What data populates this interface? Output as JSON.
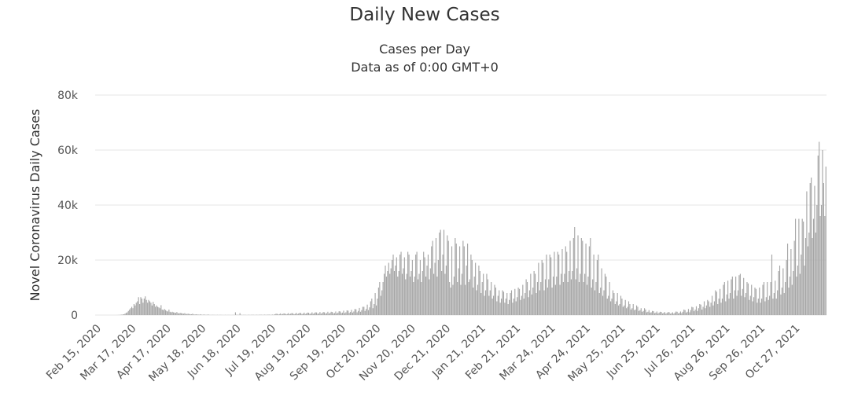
{
  "chart_data": {
    "type": "bar",
    "title": "Daily New Cases",
    "subtitle": [
      "Cases per Day",
      "Data as of 0:00 GMT+0"
    ],
    "y_label": "Novel Coronavirus Daily Cases",
    "color": "#a6a6a6",
    "grid": true,
    "ylim": [
      0,
      80000
    ],
    "yticks": [
      0,
      {
        "value": 20000,
        "label": "20k"
      },
      {
        "value": 40000,
        "label": "40k"
      },
      {
        "value": 60000,
        "label": "60k"
      },
      {
        "value": 80000,
        "label": "80k"
      }
    ],
    "categories": [
      "Feb 15, 2020",
      null,
      null,
      null,
      null,
      null,
      null,
      null,
      null,
      null,
      null,
      null,
      null,
      null,
      null,
      null,
      null,
      null,
      null,
      null,
      null,
      null,
      null,
      null,
      null,
      null,
      null,
      null,
      null,
      null,
      null,
      "Mar 17, 2020",
      null,
      null,
      null,
      null,
      null,
      null,
      null,
      null,
      null,
      null,
      null,
      null,
      null,
      null,
      null,
      null,
      null,
      null,
      null,
      null,
      null,
      null,
      null,
      null,
      null,
      null,
      null,
      null,
      null,
      null,
      "Apr 17, 2020",
      null,
      null,
      null,
      null,
      null,
      null,
      null,
      null,
      null,
      null,
      null,
      null,
      null,
      null,
      null,
      null,
      null,
      null,
      null,
      null,
      null,
      null,
      null,
      null,
      null,
      null,
      null,
      null,
      null,
      null,
      "May 18, 2020",
      null,
      null,
      null,
      null,
      null,
      null,
      null,
      null,
      null,
      null,
      null,
      null,
      null,
      null,
      null,
      null,
      null,
      null,
      null,
      null,
      null,
      null,
      null,
      null,
      null,
      null,
      null,
      null,
      null,
      null,
      "Jun 18, 2020",
      null,
      null,
      null,
      null,
      null,
      null,
      null,
      null,
      null,
      null,
      null,
      null,
      null,
      null,
      null,
      null,
      null,
      null,
      null,
      null,
      null,
      null,
      null,
      null,
      null,
      null,
      null,
      null,
      null,
      null,
      "Jul 19, 2020",
      null,
      null,
      null,
      null,
      null,
      null,
      null,
      null,
      null,
      null,
      null,
      null,
      null,
      null,
      null,
      null,
      null,
      null,
      null,
      null,
      null,
      null,
      null,
      null,
      null,
      null,
      null,
      null,
      null,
      null,
      "Aug 19, 2020",
      null,
      null,
      null,
      null,
      null,
      null,
      null,
      null,
      null,
      null,
      null,
      null,
      null,
      null,
      null,
      null,
      null,
      null,
      null,
      null,
      null,
      null,
      null,
      null,
      null,
      null,
      null,
      null,
      null,
      null,
      "Sep 19, 2020",
      null,
      null,
      null,
      null,
      null,
      null,
      null,
      null,
      null,
      null,
      null,
      null,
      null,
      null,
      null,
      null,
      null,
      null,
      null,
      null,
      null,
      null,
      null,
      null,
      null,
      null,
      null,
      null,
      null,
      null,
      "Oct 20, 2020",
      null,
      null,
      null,
      null,
      null,
      null,
      null,
      null,
      null,
      null,
      null,
      null,
      null,
      null,
      null,
      null,
      null,
      null,
      null,
      null,
      null,
      null,
      null,
      null,
      null,
      null,
      null,
      null,
      null,
      null,
      "Nov 20, 2020",
      null,
      null,
      null,
      null,
      null,
      null,
      null,
      null,
      null,
      null,
      null,
      null,
      null,
      null,
      null,
      null,
      null,
      null,
      null,
      null,
      null,
      null,
      null,
      null,
      null,
      null,
      null,
      null,
      null,
      null,
      "Dec 21, 2020",
      null,
      null,
      null,
      null,
      null,
      null,
      null,
      null,
      null,
      null,
      null,
      null,
      null,
      null,
      null,
      null,
      null,
      null,
      null,
      null,
      null,
      null,
      null,
      null,
      null,
      null,
      null,
      null,
      null,
      null,
      "Jan 21, 2021",
      null,
      null,
      null,
      null,
      null,
      null,
      null,
      null,
      null,
      null,
      null,
      null,
      null,
      null,
      null,
      null,
      null,
      null,
      null,
      null,
      null,
      null,
      null,
      null,
      null,
      null,
      null,
      null,
      null,
      null,
      "Feb 21, 2021",
      null,
      null,
      null,
      null,
      null,
      null,
      null,
      null,
      null,
      null,
      null,
      null,
      null,
      null,
      null,
      null,
      null,
      null,
      null,
      null,
      null,
      null,
      null,
      null,
      null,
      null,
      null,
      null,
      null,
      null,
      "Mar 24, 2021",
      null,
      null,
      null,
      null,
      null,
      null,
      null,
      null,
      null,
      null,
      null,
      null,
      null,
      null,
      null,
      null,
      null,
      null,
      null,
      null,
      null,
      null,
      null,
      null,
      null,
      null,
      null,
      null,
      null,
      null,
      "Apr 24, 2021",
      null,
      null,
      null,
      null,
      null,
      null,
      null,
      null,
      null,
      null,
      null,
      null,
      null,
      null,
      null,
      null,
      null,
      null,
      null,
      null,
      null,
      null,
      null,
      null,
      null,
      null,
      null,
      null,
      null,
      null,
      "May 25, 2021",
      null,
      null,
      null,
      null,
      null,
      null,
      null,
      null,
      null,
      null,
      null,
      null,
      null,
      null,
      null,
      null,
      null,
      null,
      null,
      null,
      null,
      null,
      null,
      null,
      null,
      null,
      null,
      null,
      null,
      null,
      "Jun 25, 2021",
      null,
      null,
      null,
      null,
      null,
      null,
      null,
      null,
      null,
      null,
      null,
      null,
      null,
      null,
      null,
      null,
      null,
      null,
      null,
      null,
      null,
      null,
      null,
      null,
      null,
      null,
      null,
      null,
      null,
      null,
      "Jul 26, 2021",
      null,
      null,
      null,
      null,
      null,
      null,
      null,
      null,
      null,
      null,
      null,
      null,
      null,
      null,
      null,
      null,
      null,
      null,
      null,
      null,
      null,
      null,
      null,
      null,
      null,
      null,
      null,
      null,
      null,
      null,
      "Aug 26, 2021",
      null,
      null,
      null,
      null,
      null,
      null,
      null,
      null,
      null,
      null,
      null,
      null,
      null,
      null,
      null,
      null,
      null,
      null,
      null,
      null,
      null,
      null,
      null,
      null,
      null,
      null,
      null,
      null,
      null,
      null,
      "Sep 26, 2021",
      null,
      null,
      null,
      null,
      null,
      null,
      null,
      null,
      null,
      null,
      null,
      null,
      null,
      null,
      null,
      null,
      null,
      null,
      null,
      null,
      null,
      null,
      null,
      null,
      null,
      null,
      null,
      null,
      null,
      null,
      "Oct 27, 2021",
      null,
      null,
      null,
      null,
      null,
      null,
      null,
      null,
      null,
      null,
      null,
      null,
      null,
      null,
      null,
      null,
      null,
      null,
      null,
      null,
      null,
      null,
      null,
      null,
      null,
      null,
      null,
      null
    ],
    "values": [
      0,
      0,
      0,
      0,
      0,
      0,
      0,
      0,
      0,
      0,
      0,
      0,
      0,
      0,
      0,
      0,
      0,
      0,
      0,
      20,
      30,
      50,
      100,
      150,
      200,
      300,
      500,
      800,
      1000,
      1500,
      2000,
      2500,
      3000,
      2500,
      4000,
      3500,
      4500,
      5000,
      6500,
      4000,
      6500,
      6000,
      4500,
      6000,
      6800,
      5500,
      4500,
      5500,
      5000,
      4500,
      3500,
      4800,
      4000,
      3000,
      3500,
      3000,
      2800,
      2500,
      3600,
      2000,
      1800,
      2200,
      1800,
      1500,
      1300,
      2000,
      1200,
      1000,
      1200,
      1000,
      900,
      800,
      1100,
      700,
      600,
      800,
      700,
      600,
      500,
      700,
      400,
      400,
      500,
      400,
      300,
      300,
      500,
      200,
      200,
      300,
      200,
      200,
      100,
      300,
      100,
      100,
      200,
      100,
      100,
      100,
      200,
      50,
      50,
      50,
      80,
      60,
      30,
      40,
      70,
      30,
      50,
      60,
      40,
      20,
      30,
      60,
      20,
      40,
      50,
      30,
      20,
      30,
      50,
      20,
      1000,
      100,
      80,
      60,
      700,
      80,
      40,
      60,
      80,
      60,
      30,
      50,
      90,
      40,
      70,
      90,
      80,
      40,
      60,
      100,
      50,
      80,
      120,
      100,
      60,
      80,
      150,
      60,
      100,
      150,
      140,
      80,
      100,
      180,
      80,
      300,
      500,
      450,
      200,
      350,
      600,
      250,
      400,
      600,
      550,
      250,
      400,
      700,
      300,
      500,
      700,
      650,
      300,
      450,
      800,
      350,
      550,
      800,
      750,
      350,
      500,
      900,
      400,
      600,
      900,
      850,
      400,
      550,
      1000,
      450,
      700,
      1000,
      950,
      450,
      600,
      1100,
      500,
      750,
      1100,
      1000,
      500,
      700,
      1200,
      550,
      800,
      1200,
      1100,
      600,
      750,
      1300,
      600,
      900,
      1400,
      1300,
      700,
      900,
      1600,
      700,
      1000,
      1700,
      1600,
      800,
      1100,
      1900,
      900,
      1300,
      2200,
      2100,
      1000,
      1500,
      2600,
      1200,
      1800,
      3000,
      3000,
      1500,
      2200,
      3800,
      1800,
      2800,
      5000,
      6000,
      2500,
      4000,
      8000,
      3500,
      6000,
      10000,
      12000,
      7000,
      9000,
      12000,
      15000,
      18000,
      14000,
      16000,
      19000,
      15000,
      17000,
      20000,
      22000,
      16000,
      18000,
      21000,
      14000,
      16000,
      22000,
      23000,
      15000,
      17000,
      21000,
      13000,
      15000,
      23000,
      22000,
      14000,
      16000,
      20000,
      12000,
      14000,
      22000,
      23000,
      13000,
      15000,
      20000,
      12000,
      16000,
      23000,
      21000,
      14000,
      18000,
      22000,
      13000,
      17000,
      25000,
      27000,
      15000,
      19000,
      28000,
      14000,
      20000,
      30000,
      31000,
      16000,
      22000,
      31000,
      15000,
      18000,
      29000,
      27000,
      12000,
      10000,
      25000,
      11000,
      14000,
      28000,
      26000,
      12000,
      17000,
      25000,
      11000,
      15000,
      27000,
      25000,
      11000,
      18000,
      26000,
      12000,
      13000,
      22000,
      20000,
      10000,
      14000,
      19000,
      9000,
      11000,
      18000,
      16000,
      8000,
      12000,
      15000,
      7000,
      9000,
      15000,
      13000,
      7000,
      9000,
      12000,
      6000,
      7000,
      11000,
      10000,
      5000,
      7000,
      9000,
      4500,
      6000,
      9000,
      8500,
      4500,
      6000,
      8000,
      4000,
      5500,
      8000,
      9000,
      4500,
      6000,
      9500,
      5000,
      6500,
      10000,
      9500,
      5500,
      7000,
      11000,
      6000,
      8000,
      13000,
      12000,
      6500,
      9000,
      15000,
      7500,
      10000,
      16000,
      15000,
      8000,
      12000,
      19000,
      9000,
      12000,
      20000,
      19000,
      9000,
      13000,
      22000,
      10000,
      13000,
      22000,
      21000,
      10000,
      14000,
      23000,
      11000,
      14000,
      23000,
      22000,
      11000,
      15000,
      24000,
      12000,
      15000,
      25000,
      23000,
      12000,
      16000,
      27000,
      13000,
      16000,
      28000,
      32000,
      13000,
      17000,
      29000,
      12000,
      15000,
      28000,
      27000,
      12000,
      15000,
      26000,
      11000,
      14000,
      25000,
      28000,
      10000,
      13000,
      22000,
      9000,
      12000,
      20000,
      22000,
      8000,
      10000,
      17000,
      7000,
      9000,
      15000,
      14000,
      6000,
      7000,
      12000,
      5000,
      6000,
      9000,
      8000,
      4000,
      5000,
      8000,
      3500,
      4000,
      7000,
      6000,
      3000,
      3500,
      5500,
      2500,
      3000,
      5000,
      4000,
      2000,
      2500,
      4000,
      1800,
      2000,
      3500,
      3000,
      1500,
      1800,
      2500,
      1200,
      1500,
      2500,
      2000,
      1000,
      1200,
      1800,
      900,
      1000,
      1500,
      1400,
      700,
      900,
      1300,
      600,
      900,
      1200,
      1100,
      600,
      800,
      1100,
      500,
      800,
      1100,
      1000,
      500,
      700,
      1000,
      500,
      900,
      1300,
      1200,
      600,
      800,
      1300,
      700,
      1200,
      2000,
      1800,
      900,
      1200,
      2200,
      1000,
      1800,
      3000,
      2800,
      1400,
      2000,
      3200,
      1500,
      2500,
      4000,
      3800,
      2000,
      3000,
      5000,
      2500,
      3500,
      5500,
      5000,
      3000,
      4500,
      7000,
      3500,
      5000,
      9000,
      8500,
      4000,
      6000,
      9500,
      4500,
      6000,
      11000,
      12000,
      5000,
      7500,
      12500,
      6000,
      8000,
      13000,
      14000,
      6000,
      9000,
      14000,
      7000,
      9000,
      14500,
      15000,
      7000,
      9500,
      13500,
      6500,
      8000,
      12000,
      11500,
      5500,
      7000,
      11000,
      5000,
      6500,
      10000,
      9500,
      4500,
      6000,
      10000,
      4500,
      6000,
      11000,
      12000,
      5000,
      6500,
      12000,
      5500,
      7000,
      12000,
      22000,
      6000,
      8000,
      12500,
      6000,
      9000,
      16000,
      18000,
      7500,
      10000,
      17000,
      8000,
      12000,
      20000,
      26000,
      10000,
      14000,
      24000,
      11000,
      16000,
      27000,
      35000,
      14000,
      18000,
      35000,
      15000,
      22000,
      35000,
      34000,
      18000,
      28000,
      45000,
      25000,
      30000,
      48000,
      50000,
      28000,
      35000,
      47000,
      30000,
      40000,
      58000,
      63000,
      36000,
      40000,
      60000,
      48000,
      36000,
      54000
    ]
  }
}
